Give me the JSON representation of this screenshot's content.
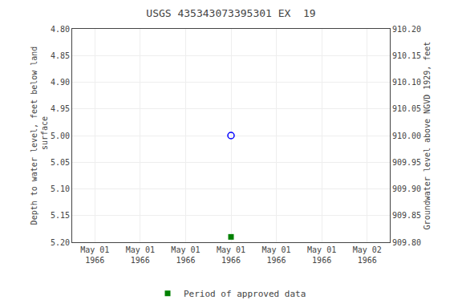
{
  "chart_data": {
    "type": "scatter",
    "title": "USGS 435343073395301 EX  19",
    "ylabel": "Depth to water level, feet below land\n surface",
    "y2label": "Groundwater level above NGVD 1929, feet",
    "categories": [
      "May 01\n1966",
      "May 01\n1966",
      "May 01\n1966",
      "May 01\n1966",
      "May 01\n1966",
      "May 01\n1966",
      "May 02\n1966"
    ],
    "series": [
      {
        "color": "#0000ff",
        "marker": "open_circle",
        "values": [
          null,
          null,
          null,
          5.0,
          null,
          null,
          null
        ]
      },
      {
        "name": "Period of approved data",
        "color": "#008000",
        "marker": "square",
        "values": [
          null,
          null,
          null,
          5.19,
          null,
          null,
          null
        ]
      }
    ],
    "ylim": [
      5.2,
      4.8
    ],
    "yticks": [
      {
        "value": 4.8,
        "label": "4.80"
      },
      {
        "value": 4.85,
        "label": "4.85"
      },
      {
        "value": 4.9,
        "label": "4.90"
      },
      {
        "value": 4.95,
        "label": "4.95"
      },
      {
        "value": 5.0,
        "label": "5.00"
      },
      {
        "value": 5.05,
        "label": "5.05"
      },
      {
        "value": 5.1,
        "label": "5.10"
      },
      {
        "value": 5.15,
        "label": "5.15"
      },
      {
        "value": 5.2,
        "label": "5.20"
      }
    ],
    "y2lim": [
      909.8,
      910.2
    ],
    "y2ticks": [
      {
        "value": 910.2,
        "label": "910.20"
      },
      {
        "value": 910.15,
        "label": "910.15"
      },
      {
        "value": 910.1,
        "label": "910.10"
      },
      {
        "value": 910.05,
        "label": "910.05"
      },
      {
        "value": 910.0,
        "label": "910.00"
      },
      {
        "value": 909.95,
        "label": "909.95"
      },
      {
        "value": 909.9,
        "label": "909.90"
      },
      {
        "value": 909.85,
        "label": "909.85"
      },
      {
        "value": 909.8,
        "label": "909.80"
      }
    ],
    "grid": true,
    "legend": "bottom"
  }
}
